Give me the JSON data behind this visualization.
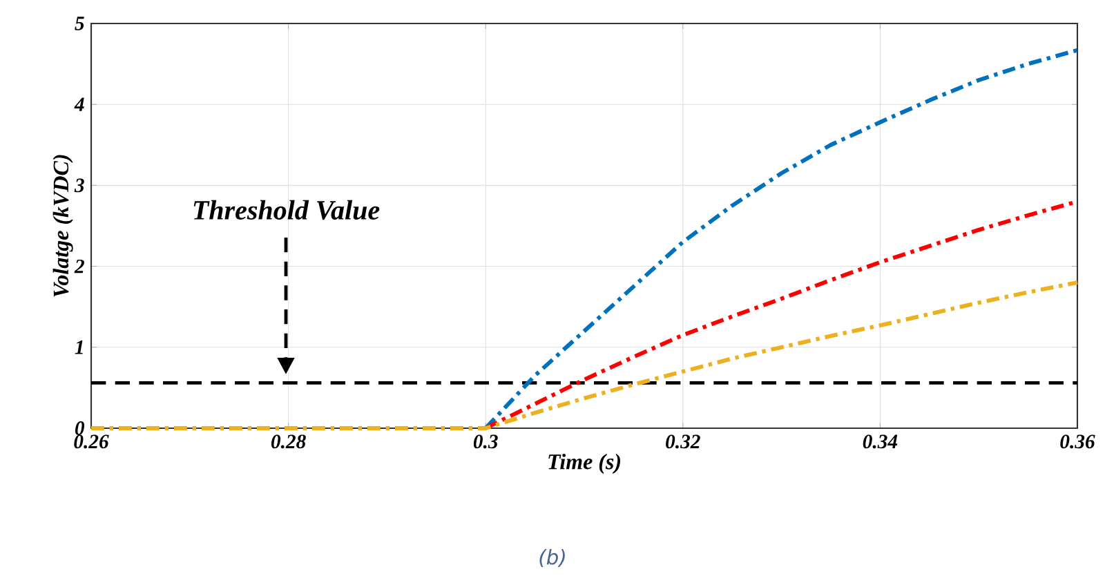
{
  "chart_data": {
    "type": "line",
    "xlabel": "Time (s)",
    "ylabel": "Volatge (kVDC)",
    "xlim": [
      0.26,
      0.36
    ],
    "ylim": [
      0,
      5
    ],
    "xticks": [
      0.26,
      0.28,
      0.3,
      0.32,
      0.34,
      0.36
    ],
    "yticks": [
      0,
      1,
      2,
      3,
      4,
      5
    ],
    "grid": true,
    "marker": "none",
    "line_style": "dashed",
    "x": [
      0.26,
      0.27,
      0.28,
      0.29,
      0.3,
      0.305,
      0.31,
      0.315,
      0.32,
      0.325,
      0.33,
      0.335,
      0.34,
      0.345,
      0.35,
      0.355,
      0.36
    ],
    "series": [
      {
        "color": "#0072bd",
        "values": [
          null,
          null,
          null,
          null,
          0,
          0.65,
          1.2,
          1.75,
          2.3,
          2.75,
          3.15,
          3.5,
          3.78,
          4.05,
          4.3,
          4.5,
          4.67
        ]
      },
      {
        "color": "#ff0000",
        "values": [
          null,
          null,
          null,
          null,
          0,
          0.3,
          0.6,
          0.88,
          1.15,
          1.38,
          1.6,
          1.83,
          2.05,
          2.25,
          2.45,
          2.63,
          2.8
        ]
      },
      {
        "color": "#edb120",
        "values": [
          0,
          0,
          0,
          0,
          0,
          0.19,
          0.37,
          0.54,
          0.7,
          0.86,
          1.0,
          1.14,
          1.27,
          1.41,
          1.55,
          1.68,
          1.8
        ]
      }
    ],
    "ref_lines": [
      {
        "axis": "y",
        "value": 0.56,
        "color": "#000000",
        "line_style": "dashed"
      }
    ],
    "annotations": [
      "Threshold Value",
      "(b)"
    ]
  }
}
